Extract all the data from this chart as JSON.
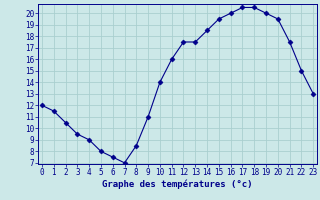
{
  "x": [
    0,
    1,
    2,
    3,
    4,
    5,
    6,
    7,
    8,
    9,
    10,
    11,
    12,
    13,
    14,
    15,
    16,
    17,
    18,
    19,
    20,
    21,
    22,
    23
  ],
  "y": [
    12,
    11.5,
    10.5,
    9.5,
    9,
    8,
    7.5,
    7,
    8.5,
    11,
    14,
    16,
    17.5,
    17.5,
    18.5,
    19.5,
    20,
    20.5,
    20.5,
    20,
    19.5,
    17.5,
    15,
    13
  ],
  "line_color": "#00008b",
  "marker": "D",
  "marker_size": 2.5,
  "bg_color": "#cce8e8",
  "grid_color": "#aacfcf",
  "xlabel": "Graphe des températures (°c)",
  "xlabel_color": "#00008b",
  "xlim": [
    0,
    23
  ],
  "ylim": [
    7,
    20.5
  ],
  "yticks": [
    7,
    8,
    9,
    10,
    11,
    12,
    13,
    14,
    15,
    16,
    17,
    18,
    19,
    20
  ],
  "xticks": [
    0,
    1,
    2,
    3,
    4,
    5,
    6,
    7,
    8,
    9,
    10,
    11,
    12,
    13,
    14,
    15,
    16,
    17,
    18,
    19,
    20,
    21,
    22,
    23
  ],
  "tick_color": "#00008b",
  "axis_color": "#00008b",
  "tick_fontsize": 5.5,
  "label_fontsize": 6.5
}
